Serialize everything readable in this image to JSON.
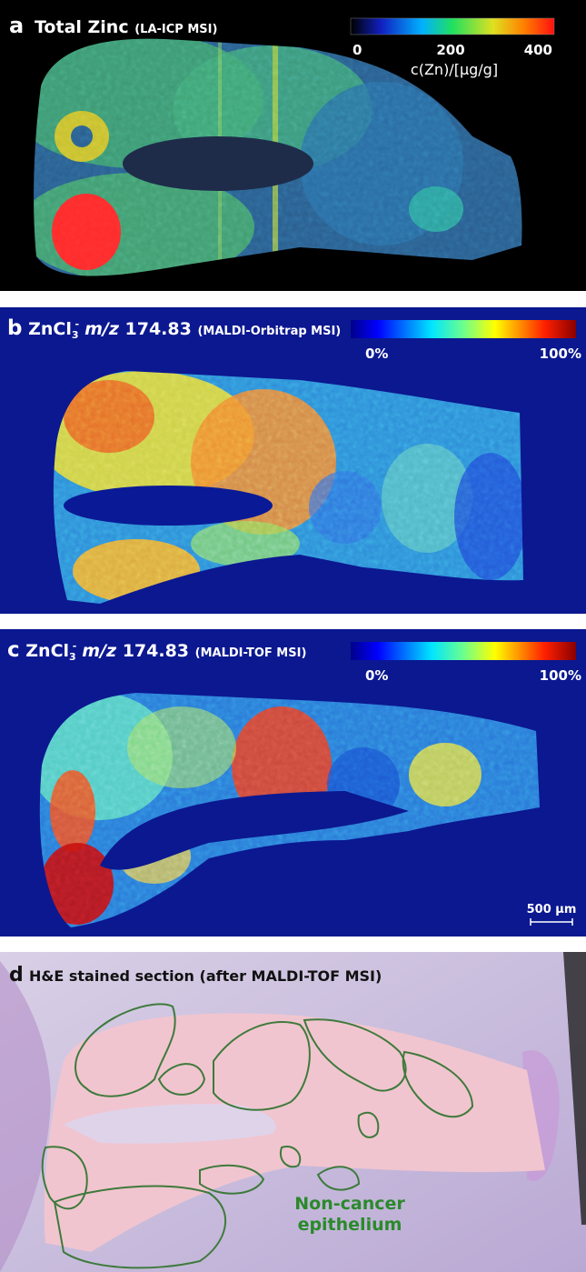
{
  "panels": [
    {
      "label": "a",
      "title": "Total Zinc",
      "method": "(LA-ICP MSI)",
      "colorbar": {
        "ticks": [
          "0",
          "200",
          "400"
        ],
        "label": "c(Zn)/[µg/g]"
      }
    },
    {
      "label": "b",
      "title": "ZnCl",
      "title_sub": "3",
      "title_sup": "-",
      "mz_label": "m/z",
      "mz": "174.83",
      "method": "(MALDI-Orbitrap MSI)",
      "colorbar": {
        "ticks": [
          "0%",
          "100%"
        ]
      }
    },
    {
      "label": "c",
      "title": "ZnCl",
      "title_sub": "3",
      "title_sup": "-",
      "mz_label": "m/z",
      "mz": "174.83",
      "method": "(MALDI-TOF MSI)",
      "colorbar": {
        "ticks": [
          "0%",
          "100%"
        ]
      },
      "scale_bar": "500 µm"
    },
    {
      "label": "d",
      "title": "H&E stained section (after MALDI-TOF MSI)",
      "annotation": [
        "Non-cancer",
        "epithelium"
      ]
    }
  ]
}
